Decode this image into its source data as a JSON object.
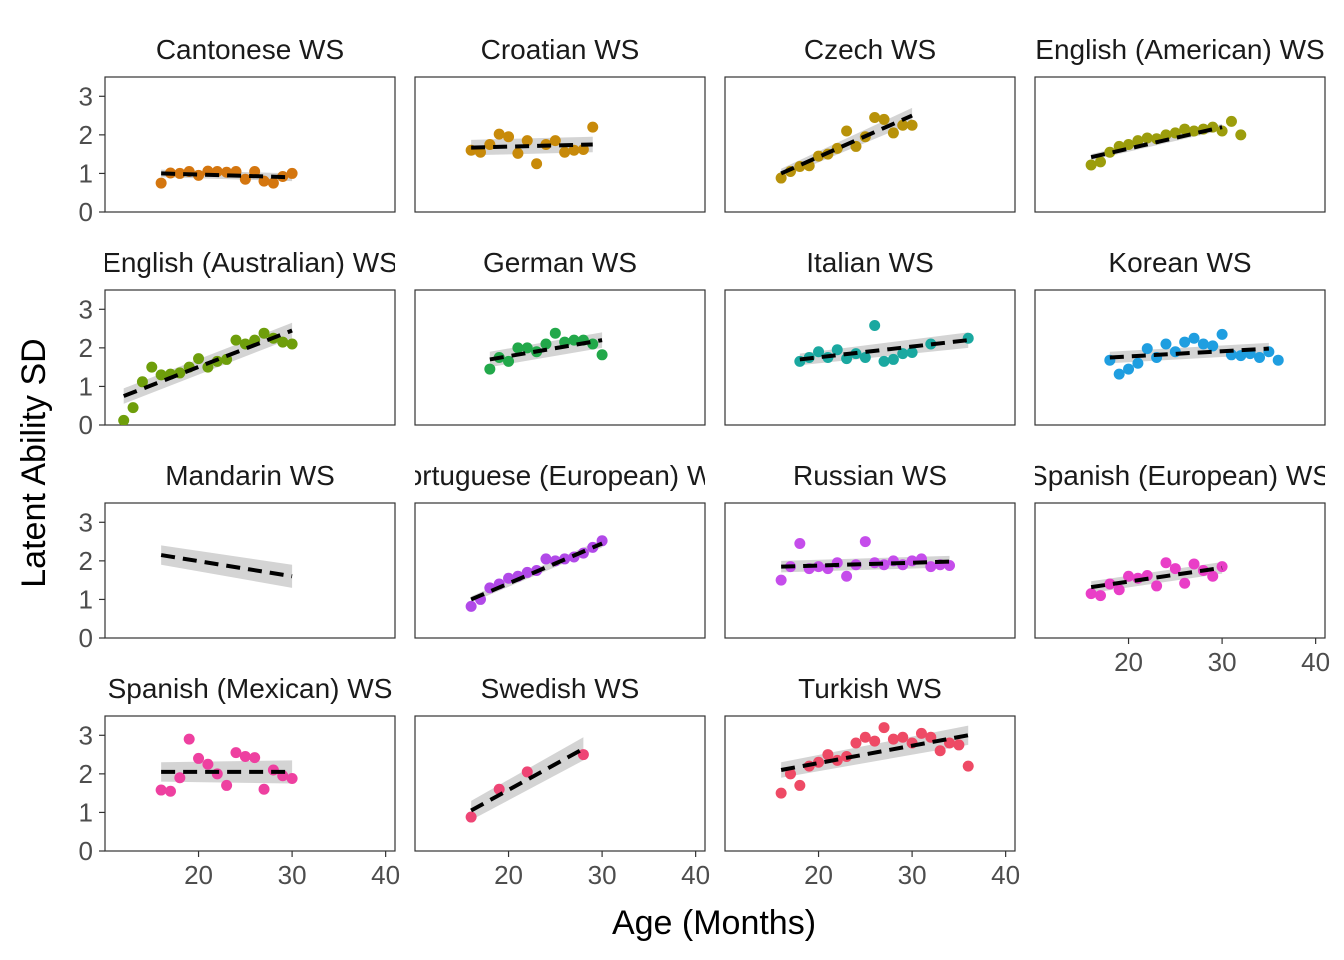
{
  "figure": {
    "xlabel": "Age (Months)",
    "ylabel": "Latent Ability SD",
    "layout": "facet grid 4 rows x 4 columns, 15 panels"
  },
  "chart_data": {
    "type": "scatter",
    "xlim": [
      10,
      41
    ],
    "ylim": [
      0,
      3.5
    ],
    "x_ticks": [
      20,
      30,
      40
    ],
    "y_ticks": [
      0,
      1,
      2,
      3
    ],
    "trend": "dashed linear fit with grey confidence band",
    "grid": false,
    "legend": "none",
    "panels": [
      {
        "title": "Cantonese WS",
        "color": "#D4760F",
        "points": [
          [
            16,
            0.75
          ],
          [
            17,
            1.01
          ],
          [
            18,
            1.0
          ],
          [
            19,
            1.05
          ],
          [
            20,
            0.95
          ],
          [
            21,
            1.06
          ],
          [
            22,
            1.05
          ],
          [
            23,
            1.03
          ],
          [
            24,
            1.05
          ],
          [
            25,
            0.85
          ],
          [
            26,
            1.05
          ],
          [
            27,
            0.8
          ],
          [
            28,
            0.75
          ],
          [
            29,
            0.92
          ],
          [
            30,
            1.0
          ]
        ],
        "fit": {
          "x": [
            16,
            30
          ],
          "y": [
            1.0,
            0.9
          ],
          "se": [
            0.1,
            0.1
          ]
        }
      },
      {
        "title": "Croatian WS",
        "color": "#C88A0A",
        "points": [
          [
            16,
            1.6
          ],
          [
            17,
            1.55
          ],
          [
            18,
            1.75
          ],
          [
            19,
            2.02
          ],
          [
            20,
            1.95
          ],
          [
            21,
            1.52
          ],
          [
            22,
            1.85
          ],
          [
            23,
            1.25
          ],
          [
            24,
            1.75
          ],
          [
            25,
            1.85
          ],
          [
            26,
            1.55
          ],
          [
            27,
            1.6
          ],
          [
            28,
            1.62
          ],
          [
            29,
            2.2
          ]
        ],
        "fit": {
          "x": [
            16,
            29
          ],
          "y": [
            1.67,
            1.75
          ],
          "se": [
            0.2,
            0.2
          ]
        }
      },
      {
        "title": "Czech WS",
        "color": "#B8920A",
        "points": [
          [
            16,
            0.88
          ],
          [
            17,
            1.05
          ],
          [
            18,
            1.18
          ],
          [
            19,
            1.2
          ],
          [
            20,
            1.45
          ],
          [
            21,
            1.5
          ],
          [
            22,
            1.65
          ],
          [
            23,
            2.1
          ],
          [
            24,
            1.7
          ],
          [
            25,
            1.95
          ],
          [
            26,
            2.45
          ],
          [
            27,
            2.4
          ],
          [
            28,
            2.05
          ],
          [
            29,
            2.25
          ],
          [
            30,
            2.25
          ]
        ],
        "fit": {
          "x": [
            16,
            30
          ],
          "y": [
            1.0,
            2.5
          ],
          "se": [
            0.12,
            0.2
          ]
        }
      },
      {
        "title": "English (American) WS",
        "color": "#9C9D0C",
        "points": [
          [
            16,
            1.22
          ],
          [
            17,
            1.3
          ],
          [
            18,
            1.55
          ],
          [
            19,
            1.7
          ],
          [
            20,
            1.75
          ],
          [
            21,
            1.85
          ],
          [
            22,
            1.92
          ],
          [
            23,
            1.9
          ],
          [
            24,
            2.0
          ],
          [
            25,
            2.05
          ],
          [
            26,
            2.15
          ],
          [
            27,
            2.1
          ],
          [
            28,
            2.15
          ],
          [
            29,
            2.2
          ],
          [
            30,
            2.1
          ],
          [
            31,
            2.35
          ],
          [
            32,
            2.0
          ]
        ],
        "fit": {
          "x": [
            16,
            30
          ],
          "y": [
            1.42,
            2.2
          ],
          "se": [
            0.08,
            0.08
          ]
        }
      },
      {
        "title": "English (Australian) WS",
        "color": "#6E9E0B",
        "points": [
          [
            12,
            0.12
          ],
          [
            13,
            0.45
          ],
          [
            14,
            1.12
          ],
          [
            15,
            1.5
          ],
          [
            16,
            1.3
          ],
          [
            17,
            1.32
          ],
          [
            18,
            1.35
          ],
          [
            19,
            1.5
          ],
          [
            20,
            1.72
          ],
          [
            21,
            1.5
          ],
          [
            22,
            1.65
          ],
          [
            23,
            1.7
          ],
          [
            24,
            2.2
          ],
          [
            25,
            2.1
          ],
          [
            26,
            2.2
          ],
          [
            27,
            2.38
          ],
          [
            28,
            2.25
          ],
          [
            29,
            2.15
          ],
          [
            30,
            2.1
          ]
        ],
        "fit": {
          "x": [
            12,
            30
          ],
          "y": [
            0.75,
            2.45
          ],
          "se": [
            0.2,
            0.2
          ]
        }
      },
      {
        "title": "German WS",
        "color": "#22A84A",
        "points": [
          [
            18,
            1.45
          ],
          [
            19,
            1.75
          ],
          [
            20,
            1.65
          ],
          [
            21,
            2.0
          ],
          [
            22,
            2.0
          ],
          [
            23,
            1.9
          ],
          [
            24,
            2.1
          ],
          [
            25,
            2.38
          ],
          [
            26,
            2.15
          ],
          [
            27,
            2.2
          ],
          [
            28,
            2.2
          ],
          [
            29,
            2.1
          ],
          [
            30,
            1.82
          ]
        ],
        "fit": {
          "x": [
            18,
            30
          ],
          "y": [
            1.7,
            2.2
          ],
          "se": [
            0.2,
            0.2
          ]
        }
      },
      {
        "title": "Italian WS",
        "color": "#1AA8A0",
        "points": [
          [
            18,
            1.65
          ],
          [
            19,
            1.75
          ],
          [
            20,
            1.9
          ],
          [
            21,
            1.75
          ],
          [
            22,
            1.95
          ],
          [
            23,
            1.72
          ],
          [
            24,
            1.85
          ],
          [
            25,
            1.75
          ],
          [
            26,
            2.58
          ],
          [
            27,
            1.65
          ],
          [
            28,
            1.7
          ],
          [
            29,
            1.85
          ],
          [
            30,
            1.88
          ],
          [
            32,
            2.1
          ],
          [
            36,
            2.25
          ]
        ],
        "fit": {
          "x": [
            18,
            36
          ],
          "y": [
            1.7,
            2.2
          ],
          "se": [
            0.15,
            0.2
          ]
        }
      },
      {
        "title": "Korean WS",
        "color": "#1F9EE0",
        "points": [
          [
            18,
            1.68
          ],
          [
            19,
            1.32
          ],
          [
            20,
            1.45
          ],
          [
            21,
            1.6
          ],
          [
            22,
            1.98
          ],
          [
            23,
            1.75
          ],
          [
            24,
            2.1
          ],
          [
            25,
            1.9
          ],
          [
            26,
            2.15
          ],
          [
            27,
            2.25
          ],
          [
            28,
            2.1
          ],
          [
            29,
            2.05
          ],
          [
            30,
            2.35
          ],
          [
            31,
            1.82
          ],
          [
            32,
            1.8
          ],
          [
            33,
            1.85
          ],
          [
            34,
            1.75
          ],
          [
            35,
            1.9
          ],
          [
            36,
            1.68
          ]
        ],
        "fit": {
          "x": [
            18,
            35
          ],
          "y": [
            1.75,
            1.98
          ],
          "se": [
            0.15,
            0.15
          ]
        }
      },
      {
        "title": "Mandarin WS",
        "color": "#7A7A7A",
        "points": [],
        "fit": {
          "x": [
            16,
            30
          ],
          "y": [
            2.15,
            1.6
          ],
          "se": [
            0.25,
            0.3
          ]
        }
      },
      {
        "title": "Portuguese (European) WS",
        "color": "#B149E8",
        "points": [
          [
            16,
            0.82
          ],
          [
            17,
            1.0
          ],
          [
            18,
            1.3
          ],
          [
            19,
            1.4
          ],
          [
            20,
            1.55
          ],
          [
            21,
            1.6
          ],
          [
            22,
            1.7
          ],
          [
            23,
            1.75
          ],
          [
            24,
            2.05
          ],
          [
            25,
            2.0
          ],
          [
            26,
            2.05
          ],
          [
            27,
            2.1
          ],
          [
            28,
            2.2
          ],
          [
            29,
            2.35
          ],
          [
            30,
            2.52
          ]
        ],
        "fit": {
          "x": [
            16,
            30
          ],
          "y": [
            1.0,
            2.45
          ],
          "se": [
            0.08,
            0.1
          ]
        }
      },
      {
        "title": "Russian WS",
        "color": "#C54DEB",
        "points": [
          [
            16,
            1.5
          ],
          [
            17,
            1.85
          ],
          [
            18,
            2.45
          ],
          [
            19,
            1.8
          ],
          [
            20,
            1.85
          ],
          [
            21,
            1.8
          ],
          [
            22,
            1.95
          ],
          [
            23,
            1.6
          ],
          [
            24,
            1.9
          ],
          [
            25,
            2.5
          ],
          [
            26,
            1.95
          ],
          [
            27,
            1.9
          ],
          [
            28,
            2.0
          ],
          [
            29,
            1.9
          ],
          [
            30,
            2.0
          ],
          [
            31,
            2.05
          ],
          [
            32,
            1.85
          ],
          [
            33,
            1.9
          ],
          [
            34,
            1.88
          ]
        ],
        "fit": {
          "x": [
            16,
            34
          ],
          "y": [
            1.85,
            1.98
          ],
          "se": [
            0.15,
            0.15
          ]
        }
      },
      {
        "title": "Spanish (European) WS",
        "color": "#E93EC7",
        "points": [
          [
            16,
            1.15
          ],
          [
            17,
            1.1
          ],
          [
            18,
            1.4
          ],
          [
            19,
            1.25
          ],
          [
            20,
            1.6
          ],
          [
            21,
            1.55
          ],
          [
            22,
            1.62
          ],
          [
            23,
            1.35
          ],
          [
            24,
            1.95
          ],
          [
            25,
            1.8
          ],
          [
            26,
            1.42
          ],
          [
            27,
            1.92
          ],
          [
            28,
            1.75
          ],
          [
            29,
            1.6
          ],
          [
            30,
            1.85
          ]
        ],
        "fit": {
          "x": [
            16,
            30
          ],
          "y": [
            1.32,
            1.82
          ],
          "se": [
            0.15,
            0.15
          ]
        }
      },
      {
        "title": "Spanish (Mexican) WS",
        "color": "#EE40A0",
        "points": [
          [
            16,
            1.58
          ],
          [
            17,
            1.55
          ],
          [
            18,
            1.9
          ],
          [
            19,
            2.9
          ],
          [
            20,
            2.4
          ],
          [
            21,
            2.25
          ],
          [
            22,
            2.0
          ],
          [
            23,
            1.7
          ],
          [
            24,
            2.55
          ],
          [
            25,
            2.45
          ],
          [
            26,
            2.42
          ],
          [
            27,
            1.6
          ],
          [
            28,
            2.1
          ],
          [
            29,
            1.95
          ],
          [
            30,
            1.88
          ]
        ],
        "fit": {
          "x": [
            16,
            30
          ],
          "y": [
            2.05,
            2.05
          ],
          "se": [
            0.25,
            0.3
          ]
        }
      },
      {
        "title": "Swedish WS",
        "color": "#EE4575",
        "points": [
          [
            16,
            0.88
          ],
          [
            19,
            1.6
          ],
          [
            22,
            2.05
          ],
          [
            28,
            2.5
          ]
        ],
        "fit": {
          "x": [
            16,
            28
          ],
          "y": [
            1.05,
            2.65
          ],
          "se": [
            0.25,
            0.3
          ]
        }
      },
      {
        "title": "Turkish WS",
        "color": "#EE4A65",
        "points": [
          [
            16,
            1.5
          ],
          [
            17,
            2.0
          ],
          [
            18,
            1.7
          ],
          [
            19,
            2.2
          ],
          [
            20,
            2.3
          ],
          [
            21,
            2.5
          ],
          [
            22,
            2.35
          ],
          [
            23,
            2.45
          ],
          [
            24,
            2.8
          ],
          [
            25,
            2.95
          ],
          [
            26,
            2.85
          ],
          [
            27,
            3.2
          ],
          [
            28,
            2.9
          ],
          [
            29,
            2.95
          ],
          [
            30,
            2.8
          ],
          [
            31,
            3.05
          ],
          [
            32,
            2.95
          ],
          [
            33,
            2.6
          ],
          [
            34,
            2.8
          ],
          [
            35,
            2.75
          ],
          [
            36,
            2.2
          ]
        ],
        "fit": {
          "x": [
            16,
            36
          ],
          "y": [
            2.1,
            3.0
          ],
          "se": [
            0.2,
            0.25
          ]
        }
      }
    ]
  }
}
